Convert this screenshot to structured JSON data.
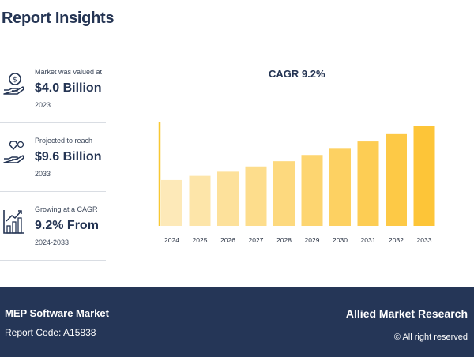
{
  "page": {
    "title": "Report Insights"
  },
  "stats": [
    {
      "caption": "Market was valued at",
      "value": "$4.0 Billion",
      "year": "2023",
      "icon": "money-hand-icon"
    },
    {
      "caption": "Projected to reach",
      "value": "$9.6 Billion",
      "year": "2033",
      "icon": "growth-hand-icon"
    },
    {
      "caption": "Growing at a CAGR",
      "value": "9.2% From",
      "year": "2024-2033",
      "icon": "growth-chart-icon"
    }
  ],
  "chart_data": {
    "type": "bar",
    "title": "CAGR 9.2%",
    "categories": [
      "2024",
      "2025",
      "2026",
      "2027",
      "2028",
      "2029",
      "2030",
      "2031",
      "2032",
      "2033"
    ],
    "values": [
      4.4,
      4.8,
      5.2,
      5.7,
      6.2,
      6.8,
      7.4,
      8.1,
      8.8,
      9.6
    ],
    "colors": [
      "#fde9b8",
      "#fde5a9",
      "#fde19b",
      "#fddd8c",
      "#fdd97e",
      "#fdd570",
      "#fdd162",
      "#fdcd54",
      "#fdc946",
      "#fdc538"
    ],
    "axis_color": "#f8c832",
    "ylim": [
      0,
      10
    ],
    "grid": false
  },
  "footer": {
    "report_title": "MEP Software Market",
    "report_code": "Report Code: A15838",
    "brand": "Allied Market Research",
    "copyright": "© All right reserved"
  }
}
